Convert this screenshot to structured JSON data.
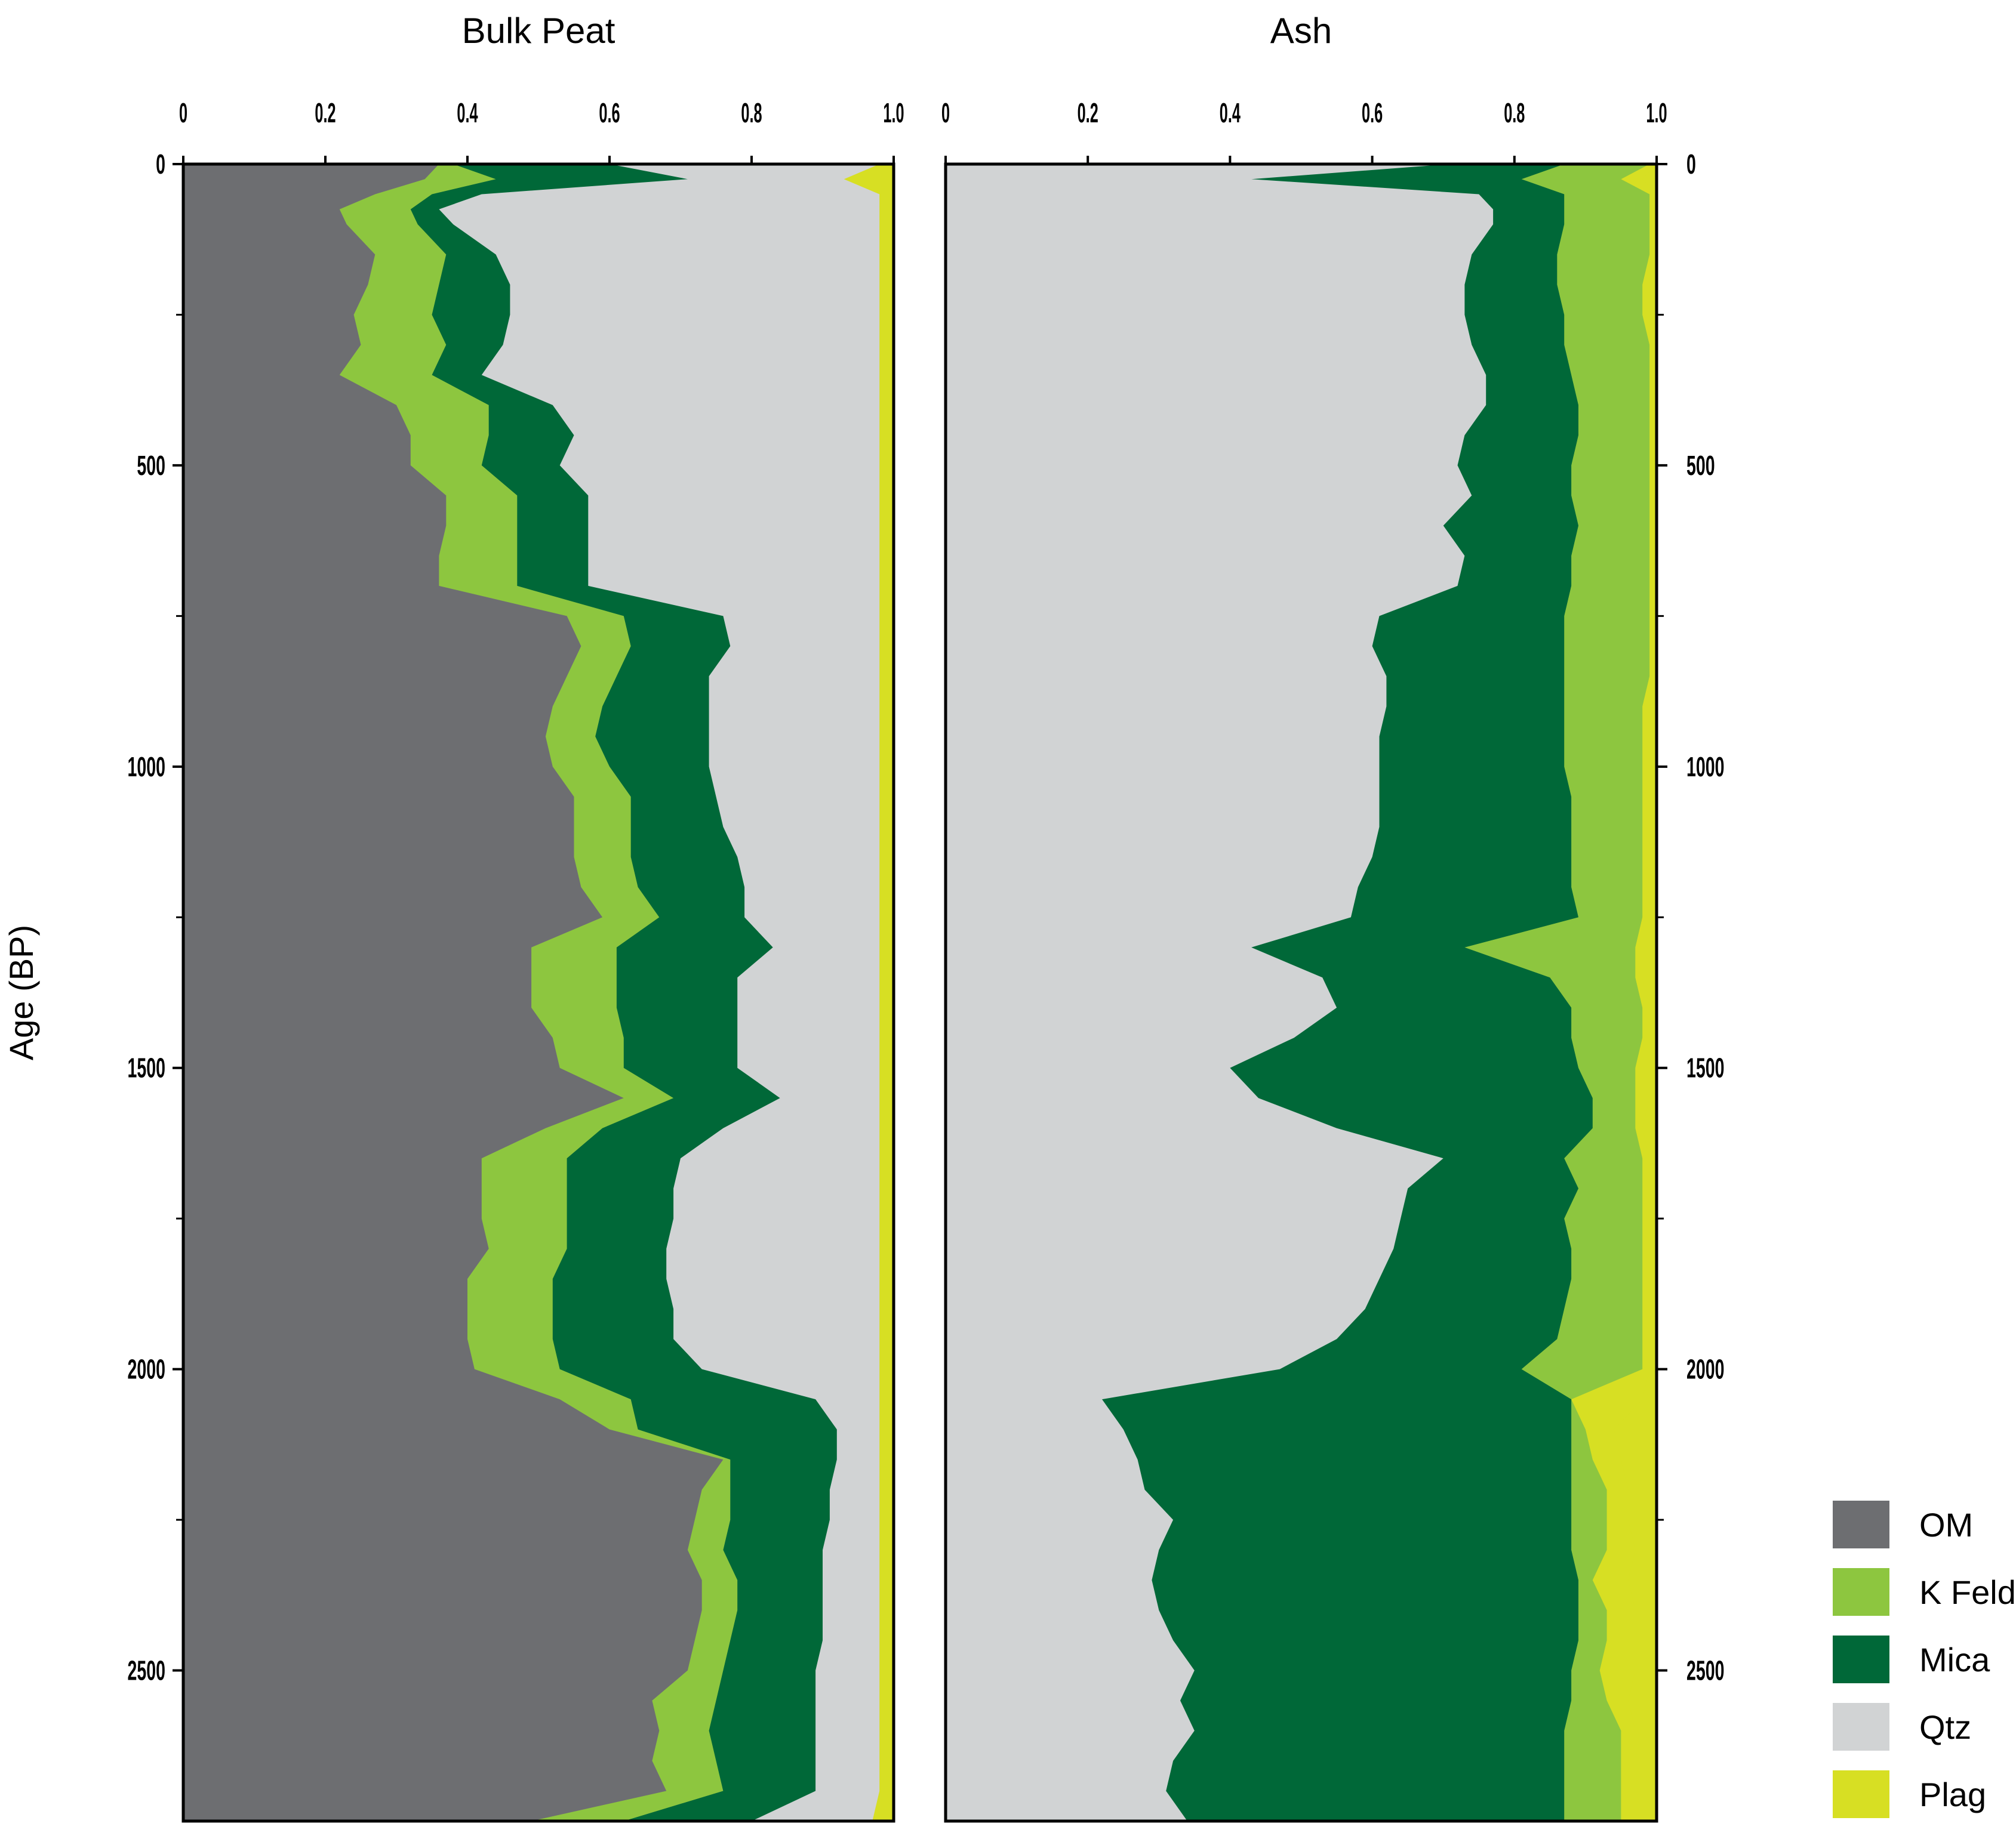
{
  "chart_data": {
    "type": "area",
    "stacking": "cumulative-fraction",
    "ylabel": "Age (BP)",
    "y_range": [
      0,
      2750
    ],
    "y_reversed": true,
    "y_ticks": [
      0,
      500,
      1000,
      1500,
      2000,
      2500
    ],
    "x_range": [
      0,
      1
    ],
    "x_ticks": [
      "0",
      "0.2",
      "0.4",
      "0.6",
      "0.8",
      "1.0"
    ],
    "grid": false,
    "legend": "bottom-right",
    "components": [
      {
        "name": "OM",
        "color": "#6d6e71"
      },
      {
        "name": "K Feld",
        "color": "#8dc63f"
      },
      {
        "name": "Mica",
        "color": "#006838"
      },
      {
        "name": "Qtz",
        "color": "#d1d3d4"
      },
      {
        "name": "Plag",
        "color": "#d7df23"
      }
    ],
    "panels": [
      {
        "title": "Bulk Peat",
        "ages": [
          0,
          25,
          50,
          75,
          100,
          150,
          200,
          250,
          300,
          350,
          400,
          450,
          500,
          550,
          600,
          650,
          700,
          750,
          800,
          850,
          900,
          950,
          1000,
          1050,
          1100,
          1150,
          1200,
          1250,
          1300,
          1350,
          1400,
          1450,
          1500,
          1550,
          1600,
          1650,
          1700,
          1750,
          1800,
          1850,
          1900,
          1950,
          2000,
          2050,
          2100,
          2150,
          2200,
          2250,
          2300,
          2350,
          2400,
          2450,
          2500,
          2550,
          2600,
          2650,
          2700,
          2750
        ],
        "cumulative_boundaries": [
          {
            "upper_of": "OM",
            "values": [
              0.36,
              0.34,
              0.27,
              0.22,
              0.23,
              0.27,
              0.26,
              0.24,
              0.25,
              0.22,
              0.3,
              0.32,
              0.32,
              0.37,
              0.37,
              0.36,
              0.36,
              0.54,
              0.56,
              0.54,
              0.52,
              0.51,
              0.52,
              0.55,
              0.55,
              0.55,
              0.56,
              0.59,
              0.49,
              0.49,
              0.49,
              0.52,
              0.53,
              0.62,
              0.51,
              0.42,
              0.42,
              0.42,
              0.43,
              0.4,
              0.4,
              0.4,
              0.41,
              0.53,
              0.6,
              0.76,
              0.73,
              0.72,
              0.71,
              0.73,
              0.73,
              0.72,
              0.71,
              0.66,
              0.67,
              0.66,
              0.68,
              0.49
            ]
          },
          {
            "upper_of": "K Feld",
            "values": [
              0.38,
              0.44,
              0.35,
              0.32,
              0.33,
              0.37,
              0.36,
              0.35,
              0.37,
              0.35,
              0.43,
              0.43,
              0.42,
              0.47,
              0.47,
              0.47,
              0.47,
              0.62,
              0.63,
              0.61,
              0.59,
              0.58,
              0.6,
              0.63,
              0.63,
              0.63,
              0.64,
              0.67,
              0.61,
              0.61,
              0.61,
              0.62,
              0.62,
              0.69,
              0.59,
              0.54,
              0.54,
              0.54,
              0.54,
              0.52,
              0.52,
              0.52,
              0.53,
              0.63,
              0.64,
              0.77,
              0.77,
              0.77,
              0.76,
              0.78,
              0.78,
              0.77,
              0.76,
              0.75,
              0.74,
              0.75,
              0.76,
              0.62
            ]
          },
          {
            "upper_of": "Mica",
            "values": [
              0.6,
              0.71,
              0.42,
              0.36,
              0.38,
              0.44,
              0.46,
              0.46,
              0.45,
              0.42,
              0.52,
              0.55,
              0.53,
              0.57,
              0.57,
              0.57,
              0.57,
              0.76,
              0.77,
              0.74,
              0.74,
              0.74,
              0.74,
              0.75,
              0.76,
              0.78,
              0.79,
              0.79,
              0.83,
              0.78,
              0.78,
              0.78,
              0.78,
              0.84,
              0.76,
              0.7,
              0.69,
              0.69,
              0.68,
              0.68,
              0.69,
              0.69,
              0.73,
              0.89,
              0.92,
              0.92,
              0.91,
              0.91,
              0.9,
              0.9,
              0.9,
              0.9,
              0.89,
              0.89,
              0.89,
              0.89,
              0.89,
              0.8
            ]
          },
          {
            "upper_of": "Qtz",
            "values": [
              0.98,
              0.93,
              0.98,
              0.98,
              0.98,
              0.98,
              0.98,
              0.98,
              0.98,
              0.98,
              0.98,
              0.98,
              0.98,
              0.98,
              0.98,
              0.98,
              0.98,
              0.98,
              0.98,
              0.98,
              0.98,
              0.98,
              0.98,
              0.98,
              0.98,
              0.98,
              0.98,
              0.98,
              0.98,
              0.98,
              0.98,
              0.98,
              0.98,
              0.98,
              0.98,
              0.98,
              0.98,
              0.98,
              0.98,
              0.98,
              0.98,
              0.98,
              0.98,
              0.98,
              0.98,
              0.98,
              0.98,
              0.98,
              0.98,
              0.98,
              0.98,
              0.98,
              0.98,
              0.98,
              0.98,
              0.98,
              0.98,
              0.97
            ]
          }
        ]
      },
      {
        "title": "Ash",
        "ages": [
          0,
          25,
          50,
          75,
          100,
          150,
          200,
          250,
          300,
          350,
          400,
          450,
          500,
          550,
          600,
          650,
          700,
          750,
          800,
          850,
          900,
          950,
          1000,
          1050,
          1100,
          1150,
          1200,
          1250,
          1300,
          1350,
          1400,
          1450,
          1500,
          1550,
          1600,
          1650,
          1700,
          1750,
          1800,
          1850,
          1900,
          1950,
          2000,
          2050,
          2100,
          2150,
          2200,
          2250,
          2300,
          2350,
          2400,
          2450,
          2500,
          2550,
          2600,
          2650,
          2700,
          2750
        ],
        "cumulative_boundaries": [
          {
            "upper_of": "OM",
            "values": [
              0,
              0,
              0,
              0,
              0,
              0,
              0,
              0,
              0,
              0,
              0,
              0,
              0,
              0,
              0,
              0,
              0,
              0,
              0,
              0,
              0,
              0,
              0,
              0,
              0,
              0,
              0,
              0,
              0,
              0,
              0,
              0,
              0,
              0,
              0,
              0,
              0,
              0,
              0,
              0,
              0,
              0,
              0,
              0,
              0,
              0,
              0,
              0,
              0,
              0,
              0,
              0,
              0,
              0,
              0,
              0,
              0,
              0
            ]
          },
          {
            "upper_of": "Qtz",
            "values": [
              0.71,
              0.43,
              0.75,
              0.77,
              0.77,
              0.74,
              0.73,
              0.73,
              0.74,
              0.76,
              0.76,
              0.73,
              0.72,
              0.74,
              0.7,
              0.73,
              0.72,
              0.61,
              0.6,
              0.62,
              0.62,
              0.61,
              0.61,
              0.61,
              0.61,
              0.6,
              0.58,
              0.57,
              0.43,
              0.53,
              0.55,
              0.49,
              0.4,
              0.44,
              0.55,
              0.7,
              0.65,
              0.64,
              0.63,
              0.61,
              0.59,
              0.55,
              0.47,
              0.22,
              0.25,
              0.27,
              0.28,
              0.32,
              0.3,
              0.29,
              0.3,
              0.32,
              0.35,
              0.33,
              0.35,
              0.32,
              0.31,
              0.34
            ]
          },
          {
            "upper_of": "Mica",
            "values": [
              0.87,
              0.81,
              0.87,
              0.87,
              0.87,
              0.86,
              0.86,
              0.87,
              0.87,
              0.88,
              0.89,
              0.89,
              0.88,
              0.88,
              0.89,
              0.88,
              0.88,
              0.87,
              0.87,
              0.87,
              0.87,
              0.87,
              0.87,
              0.88,
              0.88,
              0.88,
              0.88,
              0.89,
              0.73,
              0.85,
              0.88,
              0.88,
              0.89,
              0.91,
              0.91,
              0.87,
              0.89,
              0.87,
              0.88,
              0.88,
              0.87,
              0.86,
              0.81,
              0.88,
              0.88,
              0.88,
              0.88,
              0.88,
              0.88,
              0.89,
              0.89,
              0.89,
              0.88,
              0.88,
              0.87,
              0.87,
              0.87,
              0.87
            ]
          },
          {
            "upper_of": "K Feld",
            "values": [
              0.99,
              0.95,
              0.99,
              0.99,
              0.99,
              0.99,
              0.98,
              0.98,
              0.99,
              0.99,
              0.99,
              0.99,
              0.99,
              0.99,
              0.99,
              0.99,
              0.99,
              0.99,
              0.99,
              0.99,
              0.98,
              0.98,
              0.98,
              0.98,
              0.98,
              0.98,
              0.98,
              0.98,
              0.97,
              0.97,
              0.98,
              0.98,
              0.97,
              0.97,
              0.97,
              0.98,
              0.98,
              0.98,
              0.98,
              0.98,
              0.98,
              0.98,
              0.98,
              0.88,
              0.9,
              0.91,
              0.93,
              0.93,
              0.93,
              0.91,
              0.93,
              0.93,
              0.92,
              0.93,
              0.95,
              0.95,
              0.95,
              0.95
            ]
          },
          {
            "upper_of": "Plag",
            "values": [
              1,
              0.98,
              1,
              1,
              1,
              1,
              0.99,
              0.99,
              1,
              1,
              1,
              1,
              1,
              1,
              1,
              1,
              1,
              1,
              1,
              1,
              0.99,
              0.99,
              0.99,
              0.99,
              0.99,
              0.99,
              0.99,
              0.98,
              0.98,
              0.98,
              0.99,
              0.99,
              0.99,
              0.99,
              0.98,
              0.99,
              0.99,
              0.99,
              0.99,
              0.99,
              0.99,
              0.99,
              0.99,
              0.98,
              0.94,
              0.95,
              0.96,
              0.96,
              0.97,
              0.96,
              0.97,
              0.97,
              0.97,
              0.96,
              0.97,
              0.97,
              0.97,
              0.97
            ]
          }
        ]
      }
    ]
  }
}
